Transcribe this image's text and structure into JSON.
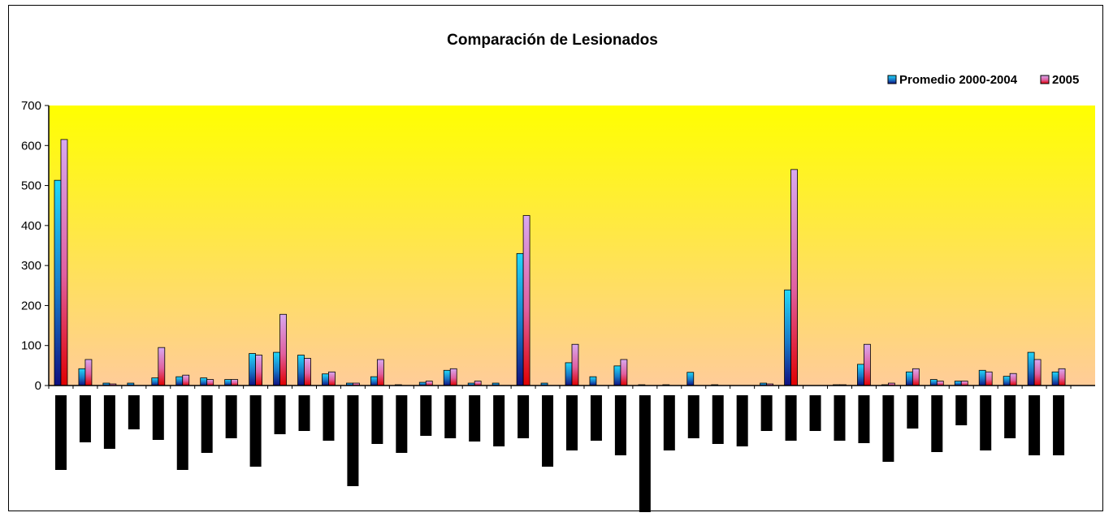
{
  "chart_data": {
    "type": "bar",
    "title": "Comparación de Lesionados",
    "xlabel": "",
    "ylabel": "",
    "ylim": [
      0,
      700
    ],
    "yticks": [
      "0",
      "100",
      "200",
      "300",
      "400",
      "500",
      "600",
      "700"
    ],
    "legend_position": "top-right",
    "plot_background": "yellow-to-peach gradient",
    "category_labels_rendered_as": "rotated black bars (unreadable)",
    "n_categories": 43,
    "series": [
      {
        "name": "Promedio 2000-2004",
        "color": "#1ec8e8",
        "values": [
          513,
          42,
          6,
          6,
          19,
          22,
          19,
          15,
          80,
          83,
          76,
          29,
          6,
          22,
          2,
          8,
          38,
          6,
          6,
          330,
          6,
          57,
          22,
          49,
          2,
          2,
          33,
          2,
          0,
          6,
          239,
          0,
          2,
          53,
          2,
          34,
          15,
          11,
          38,
          23,
          83,
          34,
          0
        ]
      },
      {
        "name": "2005",
        "color": "#d0a0e8",
        "values": [
          615,
          65,
          4,
          0,
          95,
          26,
          15,
          15,
          76,
          178,
          68,
          34,
          6,
          65,
          0,
          11,
          42,
          11,
          0,
          425,
          0,
          103,
          0,
          65,
          0,
          0,
          0,
          0,
          0,
          4,
          540,
          0,
          2,
          103,
          6,
          42,
          11,
          11,
          34,
          30,
          65,
          42,
          0
        ]
      }
    ],
    "label_bar_lengths": [
      92,
      58,
      66,
      42,
      55,
      92,
      71,
      53,
      88,
      48,
      44,
      56,
      112,
      60,
      71,
      50,
      53,
      57,
      63,
      53,
      88,
      68,
      56,
      74,
      145,
      68,
      53,
      60,
      63,
      44,
      56,
      44,
      56,
      59,
      82,
      41,
      70,
      37,
      68,
      53,
      74,
      74,
      0
    ]
  }
}
